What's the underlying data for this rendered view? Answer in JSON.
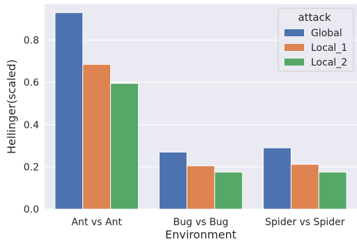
{
  "chart_data": {
    "type": "bar",
    "title": "",
    "xlabel": "Environment",
    "ylabel": "Hellinger(scaled)",
    "categories": [
      "Ant vs Ant",
      "Bug vs Bug",
      "Spider vs Spider"
    ],
    "series": [
      {
        "name": "Global",
        "values": [
          0.93,
          0.27,
          0.29
        ],
        "color": "#4c72b0"
      },
      {
        "name": "Local_1",
        "values": [
          0.685,
          0.205,
          0.212
        ],
        "color": "#dd8452"
      },
      {
        "name": "Local_2",
        "values": [
          0.595,
          0.175,
          0.175
        ],
        "color": "#55a868"
      }
    ],
    "ylim": [
      0,
      0.97
    ],
    "yticks": [
      0.0,
      0.2,
      0.4,
      0.6,
      0.8
    ],
    "ytick_labels": [
      "0.0",
      "0.2",
      "0.4",
      "0.6",
      "0.8"
    ],
    "legend": {
      "title": "attack",
      "placement": "top-right"
    },
    "grid": true,
    "background": "#eaeaf2",
    "gridColor": "#ffffff"
  }
}
